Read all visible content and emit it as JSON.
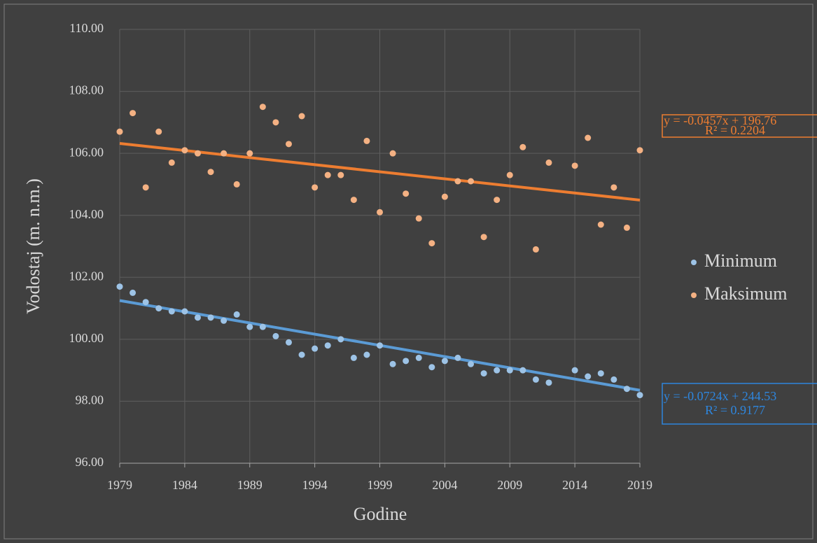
{
  "chart_data": {
    "type": "scatter",
    "x_label": "Godine",
    "y_label": "Vodostaj (m. n.m.)",
    "x": [
      1979,
      1980,
      1981,
      1982,
      1983,
      1984,
      1985,
      1986,
      1987,
      1988,
      1989,
      1990,
      1991,
      1992,
      1993,
      1994,
      1995,
      1996,
      1997,
      1998,
      1999,
      2000,
      2001,
      2002,
      2003,
      2004,
      2005,
      2006,
      2007,
      2008,
      2009,
      2010,
      2011,
      2012,
      2013,
      2014,
      2015,
      2016,
      2017,
      2018,
      2019
    ],
    "series": [
      {
        "name": "Minimum",
        "color": "#9dc3e6",
        "trend_color": "#5b9bd5",
        "label_color": "#2e86de",
        "values": [
          101.7,
          101.5,
          101.2,
          101.0,
          100.9,
          100.9,
          100.7,
          100.7,
          100.6,
          100.8,
          100.4,
          100.4,
          100.1,
          99.9,
          99.5,
          99.7,
          99.8,
          100.0,
          99.4,
          99.5,
          99.8,
          99.2,
          99.3,
          99.4,
          99.1,
          99.3,
          99.4,
          99.2,
          98.9,
          99.0,
          99.0,
          99.0,
          98.7,
          98.6,
          null,
          99.0,
          98.8,
          98.9,
          98.7,
          98.4,
          98.2
        ],
        "trendline": {
          "slope": -0.0724,
          "intercept": 244.53,
          "equation": "y = -0.0724x + 244.53",
          "r2": "R² = 0.9177"
        }
      },
      {
        "name": "Maksimum",
        "color": "#f4b183",
        "trend_color": "#ed7d31",
        "label_color": "#ed7d31",
        "values": [
          106.7,
          107.3,
          104.9,
          106.7,
          105.7,
          106.1,
          106.0,
          105.4,
          106.0,
          105.0,
          106.0,
          107.5,
          107.0,
          106.3,
          107.2,
          104.9,
          105.3,
          105.3,
          104.5,
          106.4,
          104.1,
          106.0,
          104.7,
          103.9,
          103.1,
          104.6,
          105.1,
          105.1,
          103.3,
          104.5,
          105.3,
          106.2,
          102.9,
          105.7,
          null,
          105.6,
          106.5,
          103.7,
          104.9,
          103.6,
          106.1
        ],
        "trendline": {
          "slope": -0.0457,
          "intercept": 196.76,
          "equation": "y = -0.0457x + 196.76",
          "r2": "R² = 0.2204"
        }
      }
    ],
    "xlim": [
      1979,
      2019
    ],
    "xticks": [
      1979,
      1984,
      1989,
      1994,
      1999,
      2004,
      2009,
      2014,
      2019
    ],
    "ylim": [
      96,
      110
    ],
    "yticks": [
      {
        "value": 96,
        "label": "96.00"
      },
      {
        "value": 98,
        "label": "98.00"
      },
      {
        "value": 100,
        "label": "100.00"
      },
      {
        "value": 102,
        "label": "102.00"
      },
      {
        "value": 104,
        "label": "104.00"
      },
      {
        "value": 106,
        "label": "106.00"
      },
      {
        "value": 108,
        "label": "108.00"
      },
      {
        "value": 110,
        "label": "110.00"
      }
    ],
    "grid": true,
    "legend": "right"
  }
}
